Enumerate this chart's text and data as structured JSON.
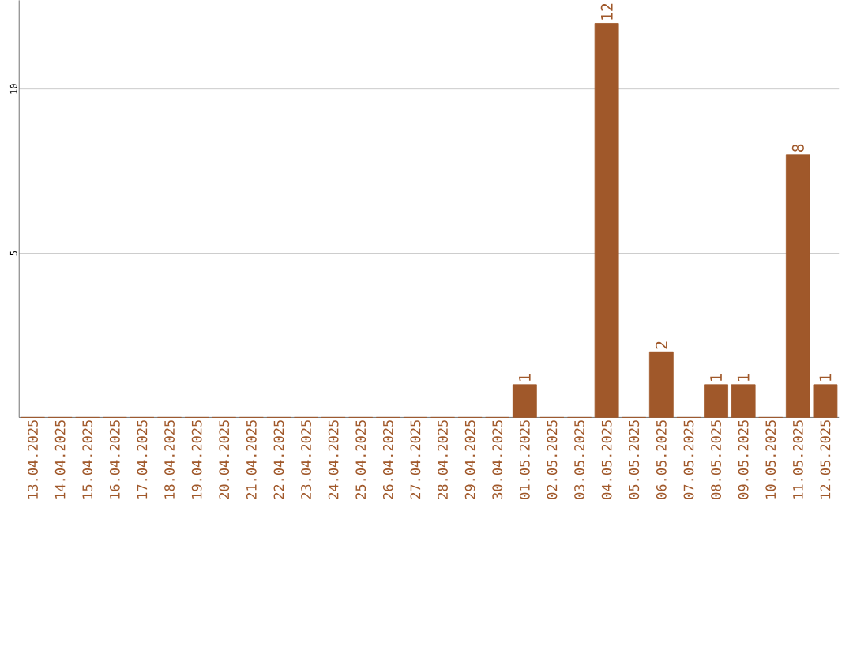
{
  "chart_data": {
    "type": "bar",
    "categories": [
      "13.04.2025",
      "14.04.2025",
      "15.04.2025",
      "16.04.2025",
      "17.04.2025",
      "18.04.2025",
      "19.04.2025",
      "20.04.2025",
      "21.04.2025",
      "22.04.2025",
      "23.04.2025",
      "24.04.2025",
      "25.04.2025",
      "26.04.2025",
      "27.04.2025",
      "28.04.2025",
      "29.04.2025",
      "30.04.2025",
      "01.05.2025",
      "02.05.2025",
      "03.05.2025",
      "04.05.2025",
      "05.05.2025",
      "06.05.2025",
      "07.05.2025",
      "08.05.2025",
      "09.05.2025",
      "10.05.2025",
      "11.05.2025",
      "12.05.2025"
    ],
    "values": [
      0,
      0,
      0,
      0,
      0,
      0,
      0,
      0,
      0,
      0,
      0,
      0,
      0,
      0,
      0,
      0,
      0,
      0,
      1,
      0,
      0,
      12,
      0,
      2,
      0,
      1,
      1,
      0,
      8,
      1
    ],
    "value_labels": [
      null,
      null,
      null,
      null,
      null,
      null,
      null,
      null,
      null,
      null,
      null,
      null,
      null,
      null,
      null,
      null,
      null,
      null,
      "1",
      null,
      null,
      "12",
      null,
      "2",
      null,
      "1",
      "1",
      null,
      "8",
      "1"
    ],
    "color": "#a0582a",
    "ylim": [
      0,
      12.7
    ],
    "yticks": [
      5,
      10
    ],
    "grid": "y"
  }
}
